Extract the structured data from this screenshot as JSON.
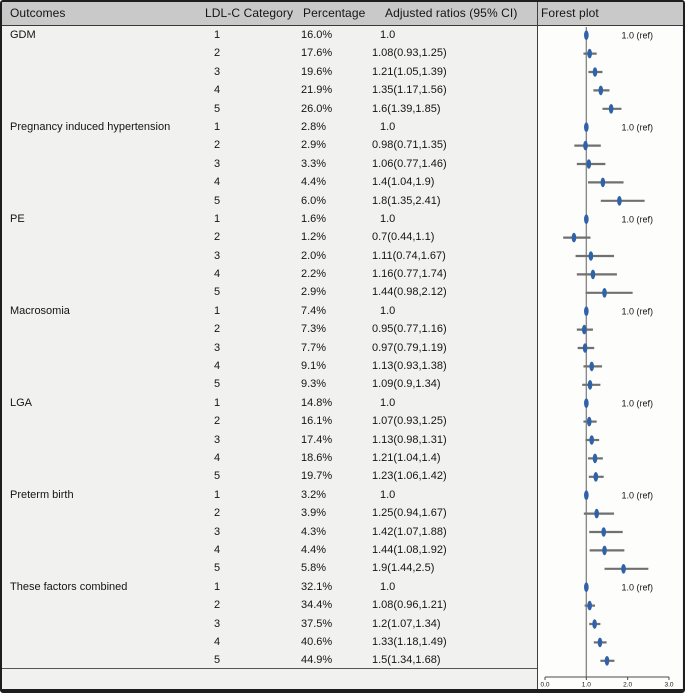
{
  "figure": {
    "columns": {
      "outcomes": "Outcomes",
      "category": "LDL-C Category",
      "percentage": "Percentage",
      "ratios": "Adjusted ratios (95% CI)",
      "forest": "Forest plot"
    }
  },
  "colors": {
    "marker": "#2f62a7",
    "ci_line": "#707070",
    "ref_line": "#8a8a8a",
    "axis": "#4a4a4a",
    "divider": "#3f3f3f",
    "header_bg": "#c9c9c9",
    "body_bg": "#f1f1f0",
    "plot_bg": "#fdfdfc",
    "border": "#1e1e1e",
    "text": "#141414"
  },
  "chart_data": {
    "type": "scatter",
    "subtype": "forest-plot",
    "title": "Forest plot",
    "xlim": [
      0.0,
      3.0
    ],
    "x_ticks": [
      0.0,
      1.0,
      2.0,
      3.0
    ],
    "x_tick_labels": [
      "0.0",
      "1.0",
      "2.0",
      "3.0"
    ],
    "ref_line_x": 1.0,
    "ref_label": "1.0 (ref)",
    "legend": "none",
    "grid": false,
    "groups": [
      {
        "outcome": "GDM",
        "rows": [
          {
            "category": "1",
            "percentage": "16.0%",
            "ratio": "1.0",
            "estimate": 1.0,
            "lo": null,
            "hi": null,
            "ref": true
          },
          {
            "category": "2",
            "percentage": "17.6%",
            "ratio": "1.08(0.93,1.25)",
            "estimate": 1.08,
            "lo": 0.93,
            "hi": 1.25,
            "ref": false
          },
          {
            "category": "3",
            "percentage": "19.6%",
            "ratio": "1.21(1.05,1.39)",
            "estimate": 1.21,
            "lo": 1.05,
            "hi": 1.39,
            "ref": false
          },
          {
            "category": "4",
            "percentage": "21.9%",
            "ratio": "1.35(1.17,1.56)",
            "estimate": 1.35,
            "lo": 1.17,
            "hi": 1.56,
            "ref": false
          },
          {
            "category": "5",
            "percentage": "26.0%",
            "ratio": "1.6(1.39,1.85)",
            "estimate": 1.6,
            "lo": 1.39,
            "hi": 1.85,
            "ref": false
          }
        ]
      },
      {
        "outcome": "Pregnancy induced hypertension",
        "rows": [
          {
            "category": "1",
            "percentage": "2.8%",
            "ratio": "1.0",
            "estimate": 1.0,
            "lo": null,
            "hi": null,
            "ref": true
          },
          {
            "category": "2",
            "percentage": "2.9%",
            "ratio": "0.98(0.71,1.35)",
            "estimate": 0.98,
            "lo": 0.71,
            "hi": 1.35,
            "ref": false
          },
          {
            "category": "3",
            "percentage": "3.3%",
            "ratio": "1.06(0.77,1.46)",
            "estimate": 1.06,
            "lo": 0.77,
            "hi": 1.46,
            "ref": false
          },
          {
            "category": "4",
            "percentage": "4.4%",
            "ratio": "1.4(1.04,1.9)",
            "estimate": 1.4,
            "lo": 1.04,
            "hi": 1.9,
            "ref": false
          },
          {
            "category": "5",
            "percentage": "6.0%",
            "ratio": "1.8(1.35,2.41)",
            "estimate": 1.8,
            "lo": 1.35,
            "hi": 2.41,
            "ref": false
          }
        ]
      },
      {
        "outcome": "PE",
        "rows": [
          {
            "category": "1",
            "percentage": "1.6%",
            "ratio": "1.0",
            "estimate": 1.0,
            "lo": null,
            "hi": null,
            "ref": true
          },
          {
            "category": "2",
            "percentage": "1.2%",
            "ratio": "0.7(0.44,1.1)",
            "estimate": 0.7,
            "lo": 0.44,
            "hi": 1.1,
            "ref": false
          },
          {
            "category": "3",
            "percentage": "2.0%",
            "ratio": "1.11(0.74,1.67)",
            "estimate": 1.11,
            "lo": 0.74,
            "hi": 1.67,
            "ref": false
          },
          {
            "category": "4",
            "percentage": "2.2%",
            "ratio": "1.16(0.77,1.74)",
            "estimate": 1.16,
            "lo": 0.77,
            "hi": 1.74,
            "ref": false
          },
          {
            "category": "5",
            "percentage": "2.9%",
            "ratio": "1.44(0.98,2.12)",
            "estimate": 1.44,
            "lo": 0.98,
            "hi": 2.12,
            "ref": false
          }
        ]
      },
      {
        "outcome": "Macrosomia",
        "rows": [
          {
            "category": "1",
            "percentage": "7.4%",
            "ratio": "1.0",
            "estimate": 1.0,
            "lo": null,
            "hi": null,
            "ref": true
          },
          {
            "category": "2",
            "percentage": "7.3%",
            "ratio": "0.95(0.77,1.16)",
            "estimate": 0.95,
            "lo": 0.77,
            "hi": 1.16,
            "ref": false
          },
          {
            "category": "3",
            "percentage": "7.7%",
            "ratio": "0.97(0.79,1.19)",
            "estimate": 0.97,
            "lo": 0.79,
            "hi": 1.19,
            "ref": false
          },
          {
            "category": "4",
            "percentage": "9.1%",
            "ratio": "1.13(0.93,1.38)",
            "estimate": 1.13,
            "lo": 0.93,
            "hi": 1.38,
            "ref": false
          },
          {
            "category": "5",
            "percentage": "9.3%",
            "ratio": "1.09(0.9,1.34)",
            "estimate": 1.09,
            "lo": 0.9,
            "hi": 1.34,
            "ref": false
          }
        ]
      },
      {
        "outcome": "LGA",
        "rows": [
          {
            "category": "1",
            "percentage": "14.8%",
            "ratio": "1.0",
            "estimate": 1.0,
            "lo": null,
            "hi": null,
            "ref": true
          },
          {
            "category": "2",
            "percentage": "16.1%",
            "ratio": "1.07(0.93,1.25)",
            "estimate": 1.07,
            "lo": 0.93,
            "hi": 1.25,
            "ref": false
          },
          {
            "category": "3",
            "percentage": "17.4%",
            "ratio": "1.13(0.98,1.31)",
            "estimate": 1.13,
            "lo": 0.98,
            "hi": 1.31,
            "ref": false
          },
          {
            "category": "4",
            "percentage": "18.6%",
            "ratio": "1.21(1.04,1.4)",
            "estimate": 1.21,
            "lo": 1.04,
            "hi": 1.4,
            "ref": false
          },
          {
            "category": "5",
            "percentage": "19.7%",
            "ratio": "1.23(1.06,1.42)",
            "estimate": 1.23,
            "lo": 1.06,
            "hi": 1.42,
            "ref": false
          }
        ]
      },
      {
        "outcome": "Preterm birth",
        "rows": [
          {
            "category": "1",
            "percentage": "3.2%",
            "ratio": "1.0",
            "estimate": 1.0,
            "lo": null,
            "hi": null,
            "ref": true
          },
          {
            "category": "2",
            "percentage": "3.9%",
            "ratio": "1.25(0.94,1.67)",
            "estimate": 1.25,
            "lo": 0.94,
            "hi": 1.67,
            "ref": false
          },
          {
            "category": "3",
            "percentage": "4.3%",
            "ratio": "1.42(1.07,1.88)",
            "estimate": 1.42,
            "lo": 1.07,
            "hi": 1.88,
            "ref": false
          },
          {
            "category": "4",
            "percentage": "4.4%",
            "ratio": "1.44(1.08,1.92)",
            "estimate": 1.44,
            "lo": 1.08,
            "hi": 1.92,
            "ref": false
          },
          {
            "category": "5",
            "percentage": "5.8%",
            "ratio": "1.9(1.44,2.5)",
            "estimate": 1.9,
            "lo": 1.44,
            "hi": 2.5,
            "ref": false
          }
        ]
      },
      {
        "outcome": "These factors combined",
        "rows": [
          {
            "category": "1",
            "percentage": "32.1%",
            "ratio": "1.0",
            "estimate": 1.0,
            "lo": null,
            "hi": null,
            "ref": true
          },
          {
            "category": "2",
            "percentage": "34.4%",
            "ratio": "1.08(0.96,1.21)",
            "estimate": 1.08,
            "lo": 0.96,
            "hi": 1.21,
            "ref": false
          },
          {
            "category": "3",
            "percentage": "37.5%",
            "ratio": "1.2(1.07,1.34)",
            "estimate": 1.2,
            "lo": 1.07,
            "hi": 1.34,
            "ref": false
          },
          {
            "category": "4",
            "percentage": "40.6%",
            "ratio": "1.33(1.18,1.49)",
            "estimate": 1.33,
            "lo": 1.18,
            "hi": 1.49,
            "ref": false
          },
          {
            "category": "5",
            "percentage": "44.9%",
            "ratio": "1.5(1.34,1.68)",
            "estimate": 1.5,
            "lo": 1.34,
            "hi": 1.68,
            "ref": false
          }
        ]
      }
    ]
  }
}
